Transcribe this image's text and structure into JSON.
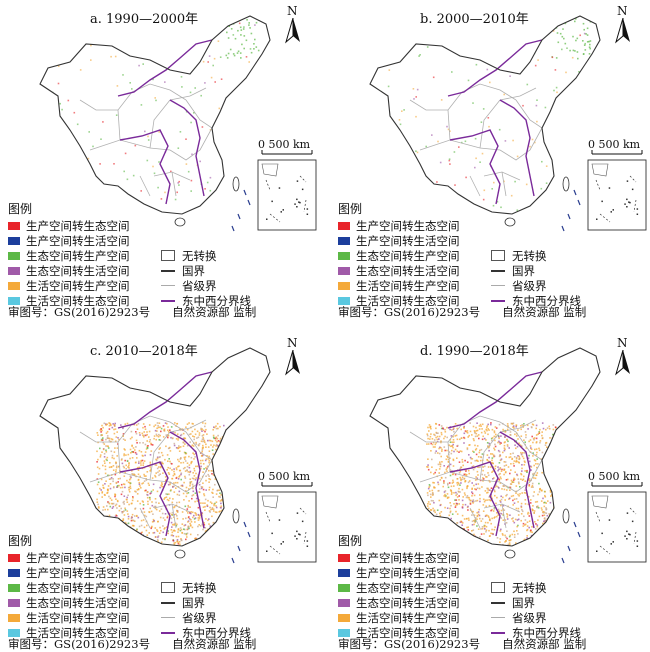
{
  "panels": [
    {
      "id": "a",
      "title": "a. 1990—2000年",
      "change": "low"
    },
    {
      "id": "b",
      "title": "b. 2000—2010年",
      "change": "low"
    },
    {
      "id": "c",
      "title": "c. 2010—2018年",
      "change": "high"
    },
    {
      "id": "d",
      "title": "d. 1990—2018年",
      "change": "high"
    }
  ],
  "north_label": "N",
  "scale_label": "0   500 km",
  "legend": {
    "heading": "图例",
    "classes": [
      {
        "label": "生产空间转生态空间",
        "color": "#e8242a"
      },
      {
        "label": "生产空间转生活空间",
        "color": "#1c3e9c"
      },
      {
        "label": "生态空间转生产空间",
        "color": "#5cb846"
      },
      {
        "label": "生态空间转生活空间",
        "color": "#a05aa8"
      },
      {
        "label": "生活空间转生产空间",
        "color": "#f4a93a"
      },
      {
        "label": "生活空间转生态空间",
        "color": "#5ac8e0"
      }
    ],
    "symbols": [
      {
        "label": "无转换",
        "kind": "box"
      },
      {
        "label": "国界",
        "kind": "national-border"
      },
      {
        "label": "省级界",
        "kind": "provincial-border"
      },
      {
        "label": "东中西分界线",
        "kind": "region-divide"
      }
    ],
    "map_review_no": "审图号：GS(2016)2923号",
    "supervisor": "自然资源部 监制"
  },
  "colors": {
    "border": "#333333",
    "province": "#b0b0b0",
    "divide": "#7a2a9a",
    "change_fill": "#d9b89a"
  }
}
